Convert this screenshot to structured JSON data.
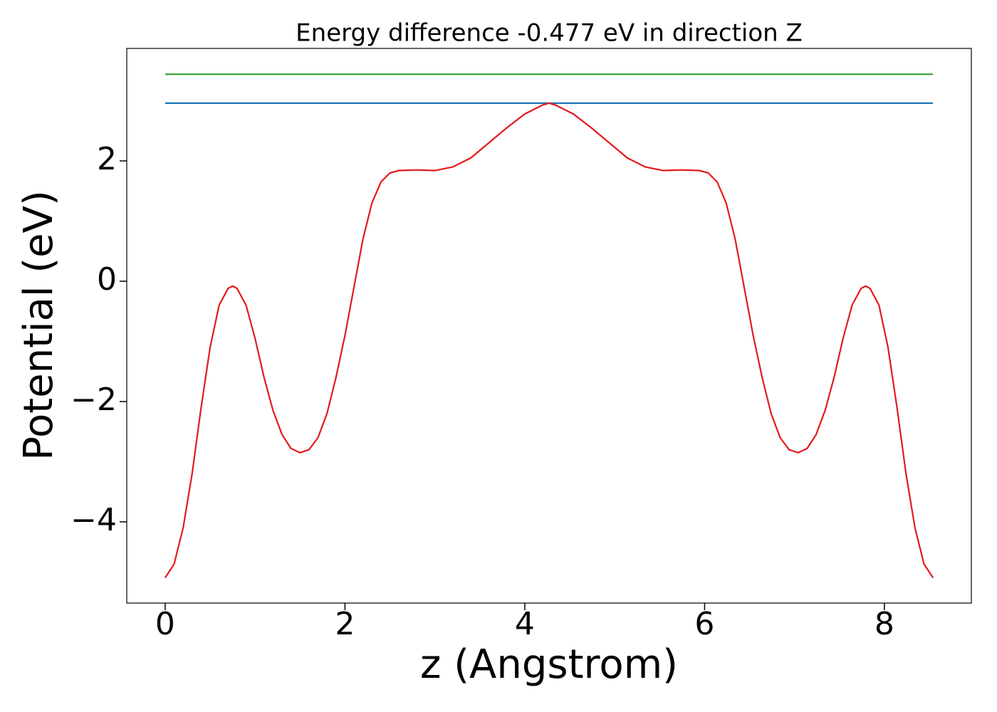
{
  "chart_data": {
    "type": "line",
    "title": "Energy difference -0.477 eV in direction Z",
    "xlabel": "z (Angstrom)",
    "ylabel": "Potential (eV)",
    "xlim": [
      -0.427,
      8.967
    ],
    "ylim": [
      -5.35,
      3.87
    ],
    "xticks": [
      0,
      2,
      4,
      6,
      8
    ],
    "yticks": [
      {
        "value": -4,
        "label": "−4"
      },
      {
        "value": -2,
        "label": "−2"
      },
      0,
      2
    ],
    "grid": false,
    "series": [
      {
        "color": "#1f77b4",
        "x": [
          0,
          8.54
        ],
        "values": [
          2.96,
          2.96
        ]
      },
      {
        "color": "#2ca02c",
        "x": [
          0,
          8.54
        ],
        "values": [
          3.44,
          3.44
        ]
      },
      {
        "color": "#e41a1c",
        "x": [
          0,
          0.1,
          0.2,
          0.3,
          0.4,
          0.5,
          0.6,
          0.7,
          0.75,
          0.8,
          0.9,
          1.0,
          1.1,
          1.2,
          1.3,
          1.4,
          1.5,
          1.6,
          1.7,
          1.8,
          1.9,
          2.0,
          2.1,
          2.2,
          2.3,
          2.4,
          2.5,
          2.6,
          2.8,
          3.0,
          3.2,
          3.4,
          3.6,
          3.8,
          4.0,
          4.2,
          4.27,
          4.34,
          4.54,
          4.74,
          4.94,
          5.14,
          5.34,
          5.54,
          5.74,
          5.94,
          6.04,
          6.14,
          6.24,
          6.34,
          6.44,
          6.54,
          6.64,
          6.74,
          6.84,
          6.94,
          7.04,
          7.14,
          7.24,
          7.34,
          7.44,
          7.54,
          7.64,
          7.74,
          7.79,
          7.84,
          7.94,
          8.04,
          8.14,
          8.24,
          8.34,
          8.44,
          8.54
        ],
        "values": [
          -4.93,
          -4.7,
          -4.1,
          -3.2,
          -2.1,
          -1.1,
          -0.4,
          -0.12,
          -0.08,
          -0.12,
          -0.4,
          -0.95,
          -1.6,
          -2.15,
          -2.55,
          -2.78,
          -2.85,
          -2.8,
          -2.6,
          -2.2,
          -1.6,
          -0.9,
          -0.1,
          0.7,
          1.3,
          1.65,
          1.8,
          1.84,
          1.85,
          1.84,
          1.9,
          2.05,
          2.3,
          2.55,
          2.78,
          2.93,
          2.96,
          2.93,
          2.78,
          2.55,
          2.3,
          2.05,
          1.9,
          1.84,
          1.85,
          1.84,
          1.8,
          1.65,
          1.3,
          0.7,
          -0.1,
          -0.9,
          -1.6,
          -2.2,
          -2.6,
          -2.8,
          -2.85,
          -2.78,
          -2.55,
          -2.15,
          -1.6,
          -0.95,
          -0.4,
          -0.12,
          -0.08,
          -0.12,
          -0.4,
          -1.1,
          -2.1,
          -3.2,
          -4.1,
          -4.7,
          -4.93
        ]
      }
    ]
  }
}
